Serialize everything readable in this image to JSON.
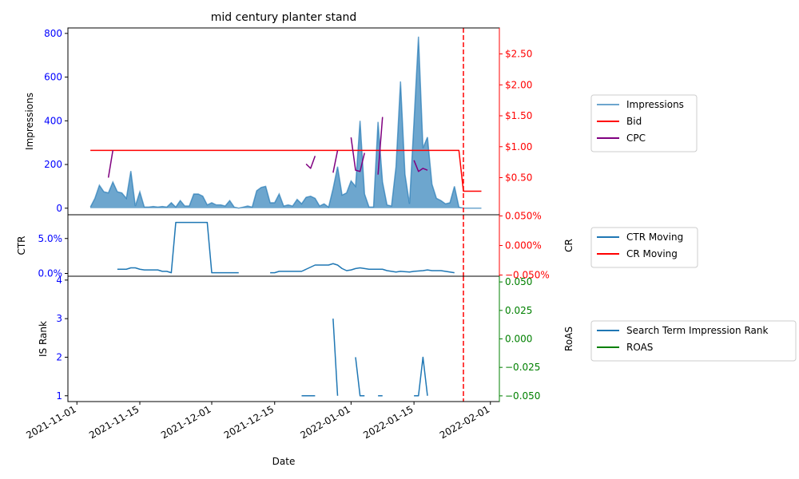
{
  "title": "mid century planter stand",
  "xlabel": "Date",
  "colors": {
    "impressions": "#1f77b4",
    "bid": "#ff0000",
    "cpc": "#800080",
    "ctr": "#1f77b4",
    "cr": "#ff0000",
    "is_rank": "#1f77b4",
    "roas": "#008000",
    "vline": "#ff0000",
    "axis_blue": "#0000ff",
    "axis_red": "#ff0000",
    "axis_green": "#008000"
  },
  "x_ticks": [
    "2021-11-01",
    "2021-11-15",
    "2021-12-01",
    "2021-12-15",
    "2022-01-01",
    "2022-01-15",
    "2022-02-01"
  ],
  "x_range": [
    "2021-10-30",
    "2022-02-03"
  ],
  "event_line_date": "2022-01-26",
  "chart_data": [
    {
      "type": "area",
      "title": "mid century planter stand",
      "ylabel": "Impressions",
      "ylim": [
        -30,
        825
      ],
      "yticks": [
        0,
        200,
        400,
        600,
        800
      ],
      "y2lim": [
        -0.1,
        2.92
      ],
      "y2ticks": [
        0.5,
        1.0,
        1.5,
        2.0,
        2.5
      ],
      "y2tick_labels": [
        "$0.50",
        "$1.00",
        "$1.50",
        "$2.00",
        "$2.50"
      ],
      "legend": [
        "Impressions",
        "Bid",
        "CPC"
      ],
      "legend_position": "right",
      "series": [
        {
          "name": "Impressions",
          "axis": "left",
          "points": [
            [
              "2021-11-04",
              5
            ],
            [
              "2021-11-05",
              45
            ],
            [
              "2021-11-06",
              105
            ],
            [
              "2021-11-07",
              75
            ],
            [
              "2021-11-08",
              70
            ],
            [
              "2021-11-09",
              120
            ],
            [
              "2021-11-10",
              75
            ],
            [
              "2021-11-11",
              70
            ],
            [
              "2021-11-12",
              45
            ],
            [
              "2021-11-13",
              170
            ],
            [
              "2021-11-14",
              10
            ],
            [
              "2021-11-15",
              75
            ],
            [
              "2021-11-16",
              5
            ],
            [
              "2021-11-17",
              5
            ],
            [
              "2021-11-18",
              8
            ],
            [
              "2021-11-19",
              5
            ],
            [
              "2021-11-20",
              8
            ],
            [
              "2021-11-21",
              5
            ],
            [
              "2021-11-22",
              25
            ],
            [
              "2021-11-23",
              5
            ],
            [
              "2021-11-24",
              35
            ],
            [
              "2021-11-25",
              10
            ],
            [
              "2021-11-26",
              10
            ],
            [
              "2021-11-27",
              65
            ],
            [
              "2021-11-28",
              65
            ],
            [
              "2021-11-29",
              55
            ],
            [
              "2021-11-30",
              15
            ],
            [
              "2021-12-01",
              25
            ],
            [
              "2021-12-02",
              15
            ],
            [
              "2021-12-03",
              15
            ],
            [
              "2021-12-04",
              10
            ],
            [
              "2021-12-05",
              35
            ],
            [
              "2021-12-06",
              5
            ],
            [
              "2021-12-07",
              0
            ],
            [
              "2021-12-08",
              5
            ],
            [
              "2021-12-09",
              10
            ],
            [
              "2021-12-10",
              5
            ],
            [
              "2021-12-11",
              80
            ],
            [
              "2021-12-12",
              95
            ],
            [
              "2021-12-13",
              100
            ],
            [
              "2021-12-14",
              25
            ],
            [
              "2021-12-15",
              25
            ],
            [
              "2021-12-16",
              65
            ],
            [
              "2021-12-17",
              10
            ],
            [
              "2021-12-18",
              15
            ],
            [
              "2021-12-19",
              10
            ],
            [
              "2021-12-20",
              40
            ],
            [
              "2021-12-21",
              20
            ],
            [
              "2021-12-22",
              50
            ],
            [
              "2021-12-23",
              55
            ],
            [
              "2021-12-24",
              45
            ],
            [
              "2021-12-25",
              10
            ],
            [
              "2021-12-26",
              20
            ],
            [
              "2021-12-27",
              5
            ],
            [
              "2021-12-28",
              90
            ],
            [
              "2021-12-29",
              190
            ],
            [
              "2021-12-30",
              60
            ],
            [
              "2021-12-31",
              70
            ],
            [
              "2022-01-01",
              125
            ],
            [
              "2022-01-02",
              100
            ],
            [
              "2022-01-03",
              400
            ],
            [
              "2022-01-04",
              65
            ],
            [
              "2022-01-05",
              5
            ],
            [
              "2022-01-06",
              5
            ],
            [
              "2022-01-07",
              395
            ],
            [
              "2022-01-08",
              120
            ],
            [
              "2022-01-09",
              15
            ],
            [
              "2022-01-10",
              10
            ],
            [
              "2022-01-11",
              190
            ],
            [
              "2022-01-12",
              580
            ],
            [
              "2022-01-13",
              155
            ],
            [
              "2022-01-14",
              20
            ],
            [
              "2022-01-15",
              395
            ],
            [
              "2022-01-16",
              785
            ],
            [
              "2022-01-17",
              275
            ],
            [
              "2022-01-18",
              325
            ],
            [
              "2022-01-19",
              110
            ],
            [
              "2022-01-20",
              45
            ],
            [
              "2022-01-21",
              35
            ],
            [
              "2022-01-22",
              20
            ],
            [
              "2022-01-23",
              25
            ],
            [
              "2022-01-24",
              100
            ],
            [
              "2022-01-25",
              5
            ],
            [
              "2022-01-26",
              0
            ],
            [
              "2022-01-27",
              0
            ],
            [
              "2022-01-28",
              0
            ],
            [
              "2022-01-29",
              0
            ],
            [
              "2022-01-30",
              0
            ]
          ]
        },
        {
          "name": "Bid",
          "axis": "right",
          "points": [
            [
              "2021-11-04",
              0.94
            ],
            [
              "2022-01-25",
              0.94
            ],
            [
              "2022-01-26",
              0.28
            ],
            [
              "2022-01-30",
              0.28
            ]
          ]
        },
        {
          "name": "CPC",
          "axis": "right",
          "segments": [
            [
              [
                "2021-11-08",
                0.5
              ],
              [
                "2021-11-09",
                0.94
              ]
            ],
            [
              [
                "2021-12-22",
                0.72
              ],
              [
                "2021-12-23",
                0.65
              ],
              [
                "2021-12-24",
                0.85
              ]
            ],
            [
              [
                "2021-12-28",
                0.58
              ],
              [
                "2021-12-29",
                0.94
              ]
            ],
            [
              [
                "2022-01-01",
                1.15
              ],
              [
                "2022-01-02",
                0.62
              ],
              [
                "2022-01-03",
                0.6
              ],
              [
                "2022-01-04",
                0.9
              ]
            ],
            [
              [
                "2022-01-07",
                0.55
              ],
              [
                "2022-01-08",
                1.48
              ]
            ],
            [
              [
                "2022-01-15",
                0.78
              ],
              [
                "2022-01-16",
                0.6
              ],
              [
                "2022-01-17",
                0.65
              ],
              [
                "2022-01-18",
                0.62
              ]
            ]
          ]
        }
      ]
    },
    {
      "type": "line",
      "ylabel": "CTR",
      "ylim": [
        -0.004,
        0.084
      ],
      "yticks": [
        0.0,
        0.05
      ],
      "ytick_labels": [
        "0.0%",
        "5.0%"
      ],
      "y2label": "CR",
      "y2lim": [
        -0.052,
        0.052
      ],
      "y2ticks": [
        -0.05,
        0.0,
        0.05
      ],
      "y2tick_labels": [
        "−0.050%",
        "0.000%",
        "0.050%"
      ],
      "legend": [
        "CTR Moving",
        "CR Moving"
      ],
      "legend_position": "right",
      "series": [
        {
          "name": "CTR Moving",
          "axis": "left",
          "segments": [
            [
              [
                "2021-11-10",
                0.006
              ],
              [
                "2021-11-12",
                0.006
              ],
              [
                "2021-11-13",
                0.008
              ],
              [
                "2021-11-14",
                0.008
              ],
              [
                "2021-11-15",
                0.006
              ],
              [
                "2021-11-16",
                0.005
              ],
              [
                "2021-11-19",
                0.005
              ],
              [
                "2021-11-20",
                0.003
              ],
              [
                "2021-11-21",
                0.003
              ],
              [
                "2021-11-22",
                0.001
              ],
              [
                "2021-11-23",
                0.073
              ],
              [
                "2021-11-30",
                0.073
              ],
              [
                "2021-12-01",
                0.001
              ],
              [
                "2021-12-07",
                0.001
              ]
            ],
            [
              [
                "2021-12-14",
                0.001
              ],
              [
                "2021-12-15",
                0.001
              ],
              [
                "2021-12-16",
                0.003
              ],
              [
                "2021-12-21",
                0.003
              ],
              [
                "2021-12-22",
                0.006
              ],
              [
                "2021-12-23",
                0.009
              ],
              [
                "2021-12-24",
                0.012
              ],
              [
                "2021-12-27",
                0.012
              ],
              [
                "2021-12-28",
                0.014
              ],
              [
                "2021-12-29",
                0.012
              ],
              [
                "2021-12-30",
                0.007
              ],
              [
                "2021-12-31",
                0.004
              ],
              [
                "2022-01-01",
                0.005
              ],
              [
                "2022-01-02",
                0.007
              ],
              [
                "2022-01-03",
                0.008
              ],
              [
                "2022-01-05",
                0.006
              ],
              [
                "2022-01-06",
                0.006
              ],
              [
                "2022-01-07",
                0.006
              ],
              [
                "2022-01-08",
                0.006
              ],
              [
                "2022-01-09",
                0.004
              ],
              [
                "2022-01-10",
                0.003
              ],
              [
                "2022-01-11",
                0.002
              ],
              [
                "2022-01-12",
                0.003
              ],
              [
                "2022-01-14",
                0.002
              ],
              [
                "2022-01-15",
                0.003
              ],
              [
                "2022-01-17",
                0.004
              ],
              [
                "2022-01-18",
                0.005
              ],
              [
                "2022-01-19",
                0.004
              ],
              [
                "2022-01-21",
                0.004
              ],
              [
                "2022-01-22",
                0.003
              ],
              [
                "2022-01-23",
                0.002
              ],
              [
                "2022-01-24",
                0.001
              ]
            ]
          ]
        },
        {
          "name": "CR Moving",
          "axis": "right",
          "segments": []
        }
      ]
    },
    {
      "type": "line",
      "ylabel": "IS Rank",
      "ylim": [
        0.85,
        4.1
      ],
      "yticks": [
        1,
        2,
        3,
        4
      ],
      "y2label": "RoAS",
      "y2lim": [
        -0.055,
        0.055
      ],
      "y2ticks": [
        -0.05,
        -0.025,
        0.0,
        0.025,
        0.05
      ],
      "y2tick_labels": [
        "−0.050",
        "−0.025",
        "0.000",
        "0.025",
        "0.050"
      ],
      "legend": [
        "Search Term Impression Rank",
        "ROAS"
      ],
      "legend_position": "right",
      "series": [
        {
          "name": "Search Term Impression Rank",
          "axis": "left",
          "segments": [
            [
              [
                "2021-12-21",
                1
              ],
              [
                "2021-12-24",
                1
              ]
            ],
            [
              [
                "2021-12-28",
                3
              ],
              [
                "2021-12-29",
                1
              ]
            ],
            [
              [
                "2022-01-02",
                2
              ],
              [
                "2022-01-03",
                1
              ],
              [
                "2022-01-04",
                1
              ]
            ],
            [
              [
                "2022-01-07",
                1
              ],
              [
                "2022-01-08",
                1
              ]
            ],
            [
              [
                "2022-01-15",
                1
              ],
              [
                "2022-01-16",
                1
              ],
              [
                "2022-01-17",
                2
              ],
              [
                "2022-01-18",
                1
              ]
            ]
          ]
        },
        {
          "name": "ROAS",
          "axis": "right",
          "segments": []
        }
      ]
    }
  ]
}
